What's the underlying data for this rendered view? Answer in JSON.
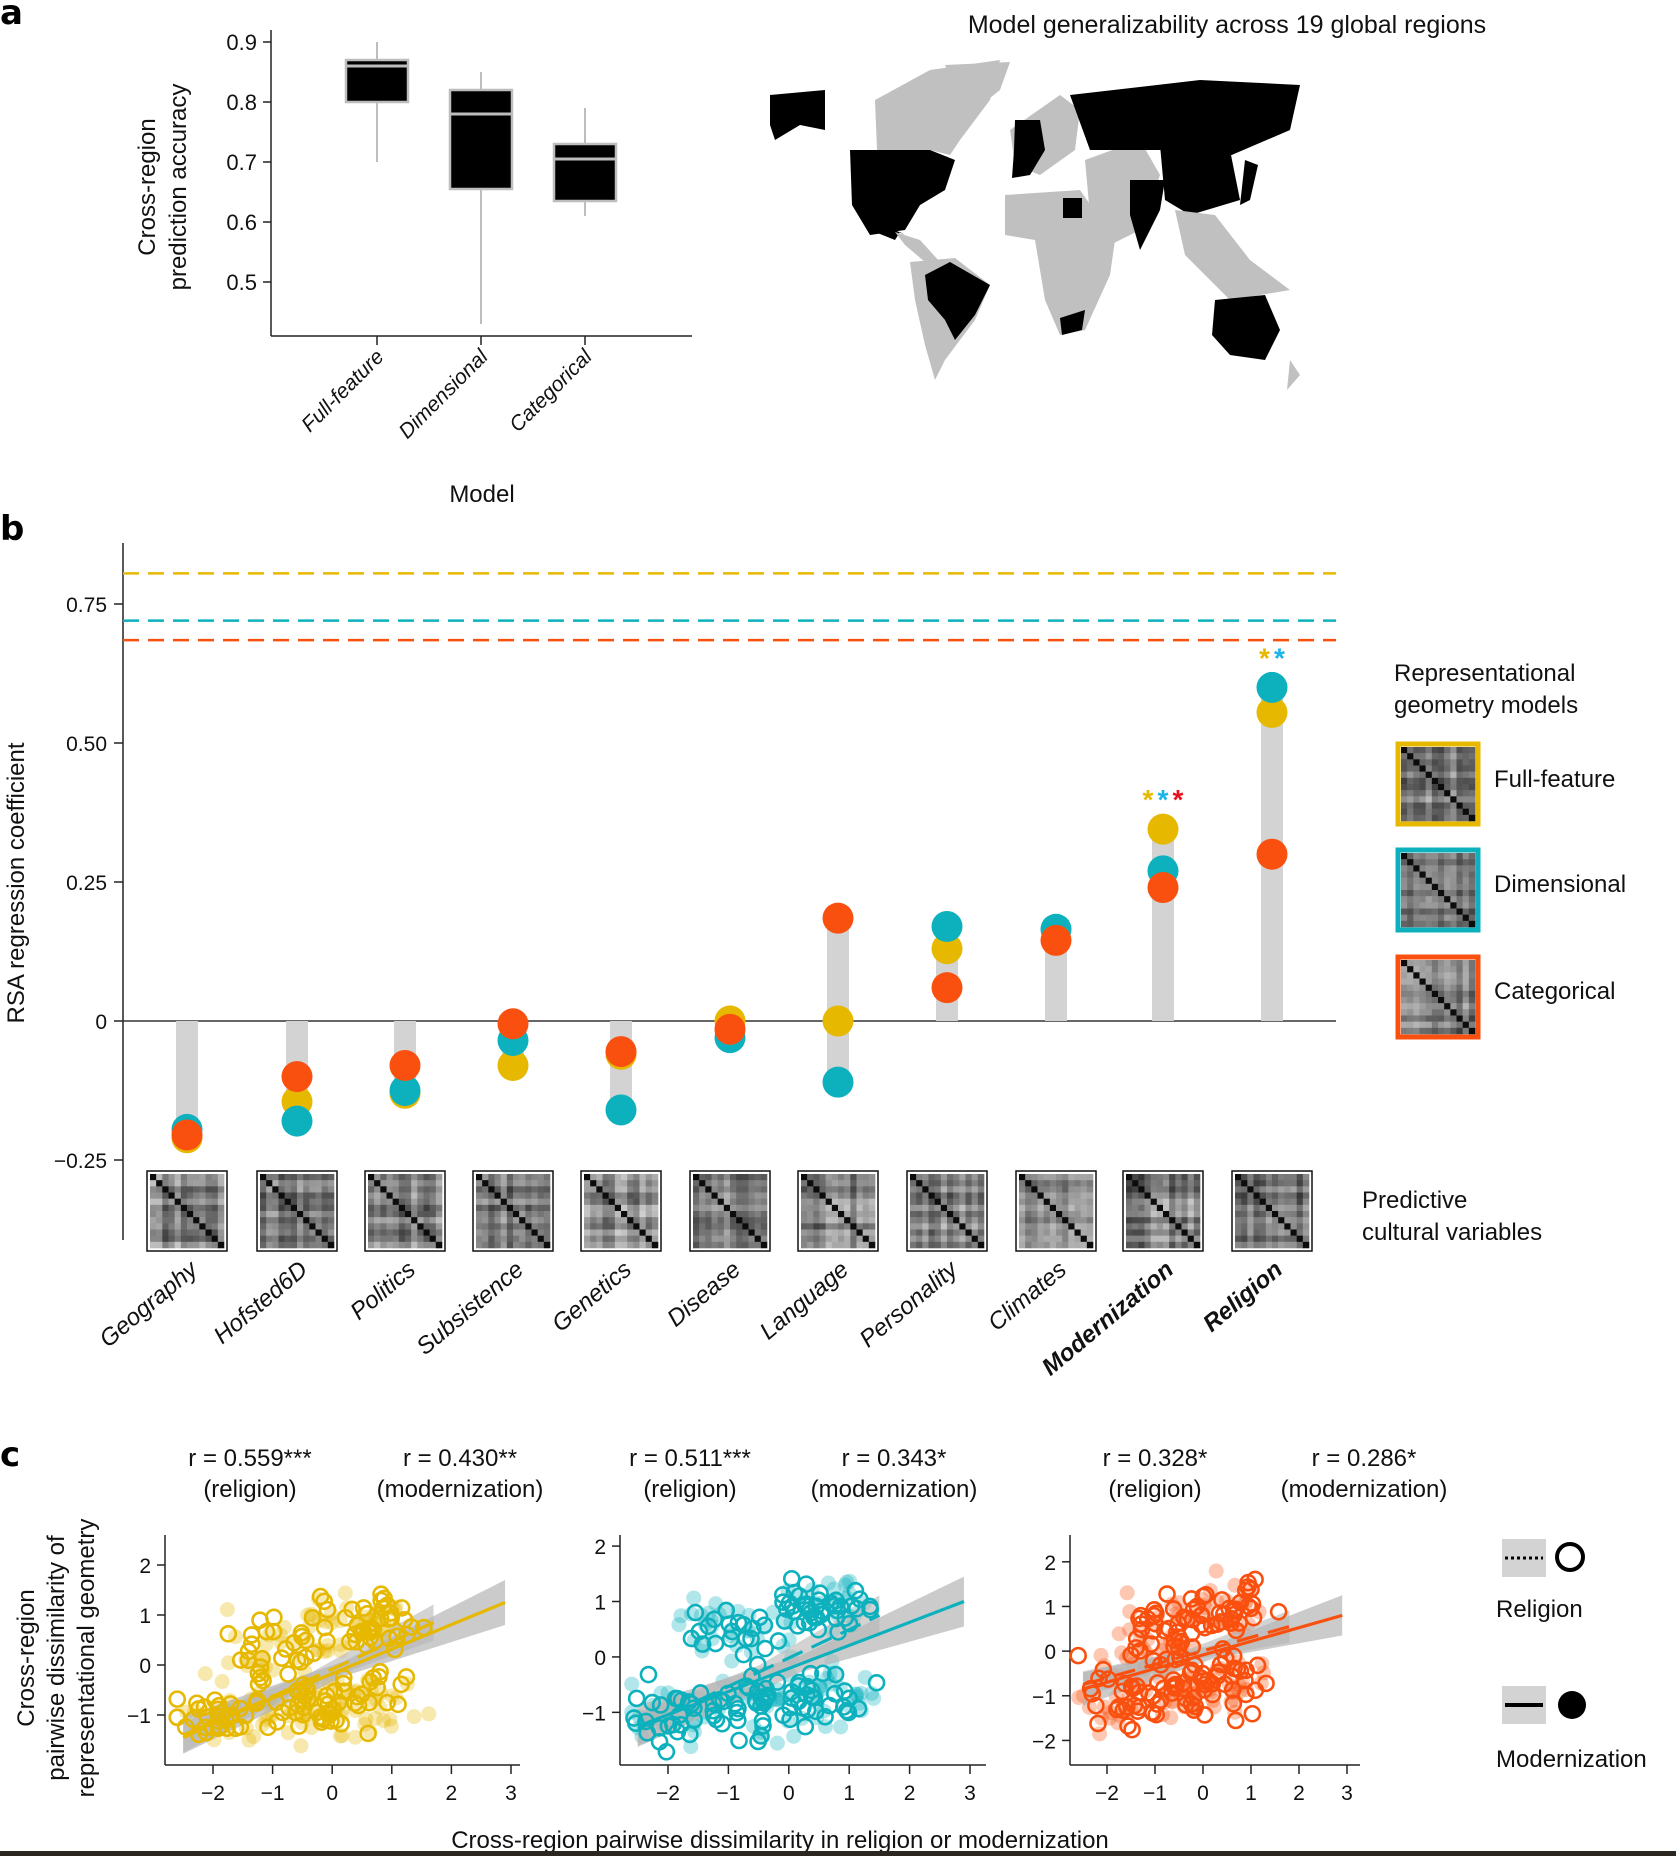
{
  "figure": {
    "panels": [
      "a",
      "b",
      "c"
    ]
  },
  "colors": {
    "full_feature": "#E6B800",
    "dimensional": "#0DB1BD",
    "categorical": "#FA500F",
    "box_fill": "#000000",
    "box_edge": "#BDBDBD",
    "stem": "#D3D3D3",
    "map_highlight": "#000000",
    "map_other": "#C0C0C0",
    "ci_band": "#B5B5B5",
    "star_cat": "#E8101E",
    "star_dim": "#1AB4E8"
  },
  "chart_data": [
    {
      "id": "panel-a-boxplot",
      "type": "box",
      "panel_label": "a",
      "title": "",
      "xlabel": "Model",
      "ylabel": "Cross-region prediction accuracy",
      "ylabel_lines": [
        "Cross-region",
        "prediction accuracy"
      ],
      "ylim": [
        0.41,
        0.92
      ],
      "yticks": [
        0.5,
        0.6,
        0.7,
        0.8,
        0.9
      ],
      "ytick_labels": [
        "0.5",
        "0.6",
        "0.7",
        "0.8",
        "0.9"
      ],
      "categories": [
        "Full-feature",
        "Dimensional",
        "Categorical"
      ],
      "boxes": [
        {
          "name": "Full-feature",
          "whisker_low": 0.7,
          "q1": 0.8,
          "median": 0.86,
          "q3": 0.87,
          "whisker_high": 0.9
        },
        {
          "name": "Dimensional",
          "whisker_low": 0.43,
          "q1": 0.655,
          "median": 0.78,
          "q3": 0.82,
          "whisker_high": 0.85
        },
        {
          "name": "Categorical",
          "whisker_low": 0.61,
          "q1": 0.635,
          "median": 0.705,
          "q3": 0.73,
          "whisker_high": 0.79
        }
      ]
    },
    {
      "id": "panel-a-map",
      "type": "map",
      "title": "Model generalizability across 19 global regions",
      "highlighted_regions": [
        "Alaska/USA",
        "USA",
        "Mexico",
        "Brazil",
        "United Kingdom",
        "Ireland",
        "France",
        "Spain",
        "Portugal",
        "Germany",
        "Russia",
        "Turkey",
        "Egypt",
        "India",
        "China",
        "Japan",
        "South Korea",
        "South Africa",
        "Australia"
      ]
    },
    {
      "id": "panel-b-dotplot",
      "type": "scatter",
      "panel_label": "b",
      "ylabel": "RSA regression coefficient",
      "ylim": [
        -0.35,
        0.87
      ],
      "yticks": [
        -0.25,
        0,
        0.25,
        0.5,
        0.75
      ],
      "ytick_labels": [
        "−0.25",
        "0",
        "0.25",
        "0.50",
        "0.75"
      ],
      "categories": [
        "Geography",
        "Hofsted6D",
        "Politics",
        "Subsistence",
        "Genetics",
        "Disease",
        "Language",
        "Personality",
        "Climates",
        "Modernization",
        "Religion"
      ],
      "bold_categories": [
        "Modernization",
        "Religion"
      ],
      "series": [
        {
          "name": "Full-feature",
          "color_key": "full_feature",
          "values": [
            -0.21,
            -0.145,
            -0.13,
            -0.08,
            -0.06,
            0.0,
            0.0,
            0.13,
            null,
            0.345,
            0.555
          ],
          "reference_line": 0.805
        },
        {
          "name": "Dimensional",
          "color_key": "dimensional",
          "values": [
            -0.195,
            -0.18,
            -0.125,
            -0.035,
            -0.16,
            -0.03,
            -0.11,
            0.17,
            0.165,
            0.27,
            0.6
          ],
          "reference_line": 0.72
        },
        {
          "name": "Categorical",
          "color_key": "categorical",
          "values": [
            -0.205,
            -0.1,
            -0.08,
            -0.005,
            -0.055,
            -0.015,
            0.185,
            0.06,
            0.145,
            0.24,
            0.3
          ],
          "reference_line": 0.685
        }
      ],
      "significance": [
        {
          "category": "Modernization",
          "stars": [
            {
              "text": "*",
              "color_key": "full_feature"
            },
            {
              "text": "*",
              "color_key": "star_dim"
            },
            {
              "text": "*",
              "color_key": "star_cat"
            }
          ]
        },
        {
          "category": "Religion",
          "stars": [
            {
              "text": "*",
              "color_key": "full_feature"
            },
            {
              "text": "*",
              "color_key": "star_dim"
            }
          ]
        }
      ],
      "legend": {
        "title_lines": [
          "Representational",
          "geometry models"
        ],
        "items": [
          "Full-feature",
          "Dimensional",
          "Categorical"
        ],
        "placement": "right"
      },
      "matrix_row_label_lines": [
        "Predictive",
        "cultural variables"
      ]
    },
    {
      "id": "panel-c-scatter",
      "type": "scatter",
      "panel_label": "c",
      "ylabel_lines": [
        "Cross-region",
        "pairwise dissimilarity of",
        "representational geometry"
      ],
      "xlabel": "Cross-region pairwise dissimilarity in religion or modernization",
      "xticks": [
        -2,
        -1,
        0,
        1,
        2,
        3
      ],
      "xtick_labels": [
        "−2",
        "−1",
        "0",
        "1",
        "2",
        "3"
      ],
      "subplots": [
        {
          "model": "Full-feature",
          "color_key": "full_feature",
          "ylim": [
            -2.0,
            2.6
          ],
          "yticks": [
            -1,
            0,
            1,
            2
          ],
          "ytick_labels": [
            "−1",
            "0",
            "1",
            "2"
          ],
          "r_religion": "0.559***",
          "r_modernization": "0.430**",
          "fit_religion": {
            "x": [
              -2.5,
              1.7
            ],
            "y": [
              -1.45,
              0.85
            ]
          },
          "fit_modernization": {
            "x": [
              -2.5,
              2.9
            ],
            "y": [
              -1.4,
              1.25
            ]
          }
        },
        {
          "model": "Dimensional",
          "color_key": "dimensional",
          "ylim": [
            -1.95,
            2.2
          ],
          "yticks": [
            -1,
            0,
            1,
            2
          ],
          "ytick_labels": [
            "−1",
            "0",
            "1",
            "2"
          ],
          "r_religion": "0.511***",
          "r_modernization": "0.343*",
          "fit_religion": {
            "x": [
              -2.5,
              1.5
            ],
            "y": [
              -1.3,
              0.75
            ]
          },
          "fit_modernization": {
            "x": [
              -2.5,
              2.9
            ],
            "y": [
              -1.25,
              1.0
            ]
          }
        },
        {
          "model": "Categorical",
          "color_key": "categorical",
          "ylim": [
            -2.55,
            2.6
          ],
          "yticks": [
            -2,
            -1,
            0,
            1,
            2
          ],
          "ytick_labels": [
            "−2",
            "−1",
            "0",
            "1",
            "2"
          ],
          "r_religion": "0.328*",
          "r_modernization": "0.286*",
          "fit_religion": {
            "x": [
              -2.5,
              1.8
            ],
            "y": [
              -0.75,
              0.55
            ]
          },
          "fit_modernization": {
            "x": [
              -2.5,
              2.9
            ],
            "y": [
              -0.85,
              0.8
            ]
          }
        }
      ],
      "legend": {
        "items": [
          {
            "label": "Religion",
            "line": "dotted",
            "marker": "open-circle"
          },
          {
            "label": "Modernization",
            "line": "solid",
            "marker": "filled-circle"
          }
        ],
        "placement": "right"
      },
      "r_prefix": "r",
      "r_eq": " = ",
      "label_religion": "(religion)",
      "label_modernization": "(modernization)"
    }
  ]
}
